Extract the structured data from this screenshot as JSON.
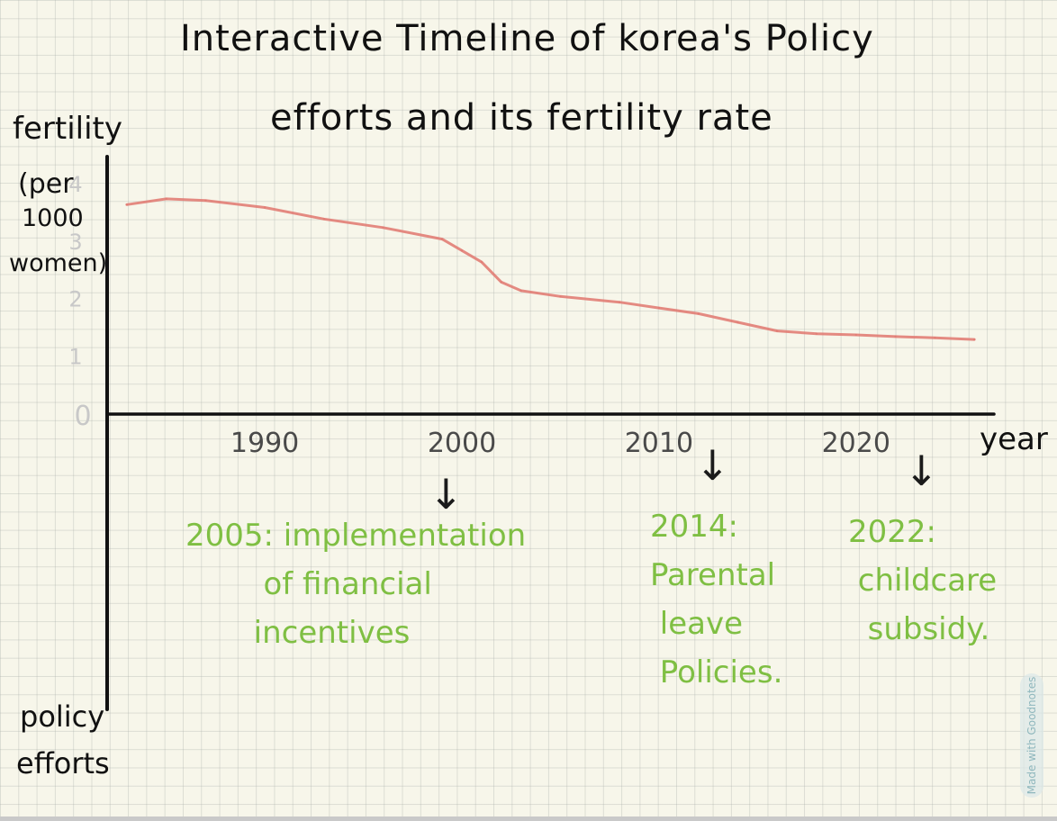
{
  "title_line1": "Interactive Timeline of korea's Policy",
  "title_line2": "efforts and its fertility rate",
  "y_axis_label": {
    "line1": "fertility",
    "line2": "(per",
    "line3": "1000",
    "line4": "women)"
  },
  "bottom_axis_label": {
    "line1": "policy",
    "line2": "efforts"
  },
  "x_axis_label": "year",
  "events": [
    {
      "text": "2005: implementation\n        of financial\n       incentives"
    },
    {
      "text": "2014:\nParental\n leave\n Policies."
    },
    {
      "text": "2022:\n childcare\n  subsidy."
    }
  ],
  "watermark": "Made with Goodnotes",
  "colors": {
    "line": "#e0776f",
    "event_text": "#7fbf43",
    "tick_labels": "#c8c8c8",
    "axis": "#111111"
  },
  "chart_data": {
    "type": "line",
    "title": "Interactive Timeline of korea's Policy efforts and its fertility rate",
    "xlabel": "year",
    "ylabel": "fertility (per 1000 women)",
    "x_ticks": [
      1990,
      2000,
      2010,
      2020
    ],
    "y_ticks": [
      "0",
      "1",
      "2",
      "3",
      "4"
    ],
    "xlim": [
      1982,
      2027
    ],
    "ylim": [
      0,
      4
    ],
    "series": [
      {
        "x": [
          1983,
          1985,
          1987,
          1990,
          1993,
          1996,
          1999,
          2000,
          2001,
          2002,
          2003,
          2005,
          2008,
          2010,
          2012,
          2014,
          2016,
          2018,
          2020,
          2022,
          2024,
          2026
        ],
        "y": [
          3.65,
          3.75,
          3.72,
          3.6,
          3.4,
          3.25,
          3.05,
          2.85,
          2.65,
          2.3,
          2.15,
          2.05,
          1.95,
          1.85,
          1.75,
          1.6,
          1.45,
          1.4,
          1.38,
          1.35,
          1.33,
          1.3
        ]
      }
    ],
    "grid": true,
    "annotations": [
      "2005",
      "2014",
      "2022"
    ]
  }
}
